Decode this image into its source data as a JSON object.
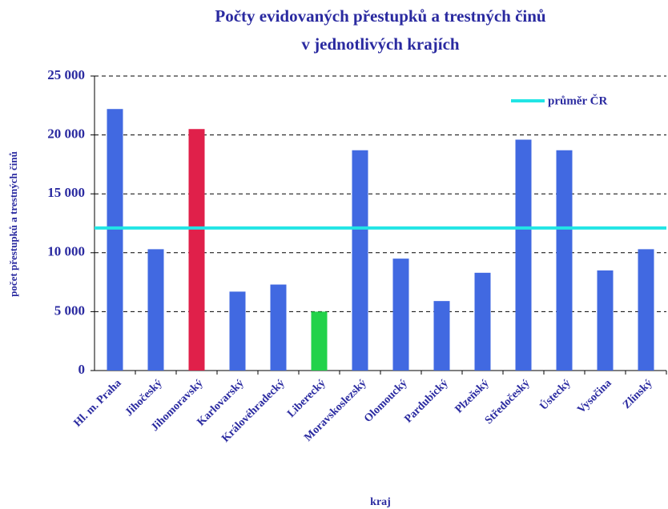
{
  "chart_data": {
    "type": "bar",
    "title": [
      "Počty evidovaných přestupků a trestných činů",
      "v jednotlivých krajích"
    ],
    "x_label": "kraj",
    "y_label": "počet přestupků a trestných činů",
    "categories": [
      "Hl. m. Praha",
      "Jihočeský",
      "Jihomoravský",
      "Karlovarský",
      "Královéhradecký",
      "Liberecký",
      "Moravskoslezský",
      "Olomoucký",
      "Pardubický",
      "Plzeňský",
      "Středočeský",
      "Ústecký",
      "Vysočina",
      "Zlínský"
    ],
    "values": [
      22200,
      10300,
      20500,
      6700,
      7300,
      5000,
      18700,
      9500,
      5900,
      8300,
      19600,
      18700,
      8500,
      10300
    ],
    "colors": [
      "#4169e1",
      "#4169e1",
      "#e0204a",
      "#4169e1",
      "#4169e1",
      "#22d24a",
      "#4169e1",
      "#4169e1",
      "#4169e1",
      "#4169e1",
      "#4169e1",
      "#4169e1",
      "#4169e1",
      "#4169e1"
    ],
    "reference_line": {
      "name": "průměr ČR",
      "value": 12100,
      "color": "#22e5e5"
    },
    "ylim": [
      0,
      25000
    ],
    "yticks": [
      0,
      {
        "value": 5000,
        "label": "5 000"
      },
      {
        "value": 10000,
        "label": "10 000"
      },
      {
        "value": 15000,
        "label": "15 000"
      },
      {
        "value": 20000,
        "label": "20 000"
      },
      {
        "value": 25000,
        "label": "25 000"
      }
    ],
    "grid": true,
    "legend": "upper right"
  }
}
